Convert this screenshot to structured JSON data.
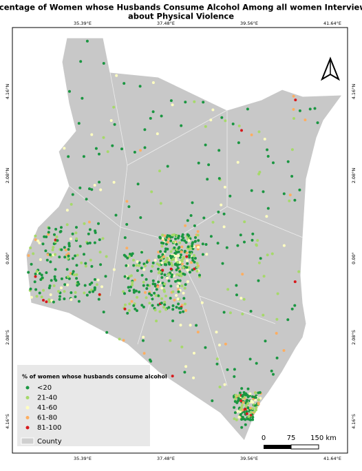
{
  "map": {
    "title_lines": [
      "Percentage of Women whose Husbands Consume Alcohol Among all women Interviewed",
      "about Physical Violence"
    ],
    "x_labels": [
      "35.39°E",
      "37.48°E",
      "39.56°E",
      "41.64°E"
    ],
    "y_labels": [
      "4.16°N",
      "2.08°N",
      "0.00°",
      "2.08°S",
      "4.16°S"
    ],
    "legend": {
      "title": "% of women whose husbands consume alcohol",
      "items": [
        {
          "label": "<20",
          "color": "#1a9641"
        },
        {
          "label": "21-40",
          "color": "#a6d96a"
        },
        {
          "label": "41-60",
          "color": "#ffffc0"
        },
        {
          "label": "61-80",
          "color": "#fdae61"
        },
        {
          "label": "81-100",
          "color": "#d7191c"
        }
      ],
      "county": "County"
    },
    "scale_labels": [
      "0",
      "75",
      "150 km"
    ]
  }
}
